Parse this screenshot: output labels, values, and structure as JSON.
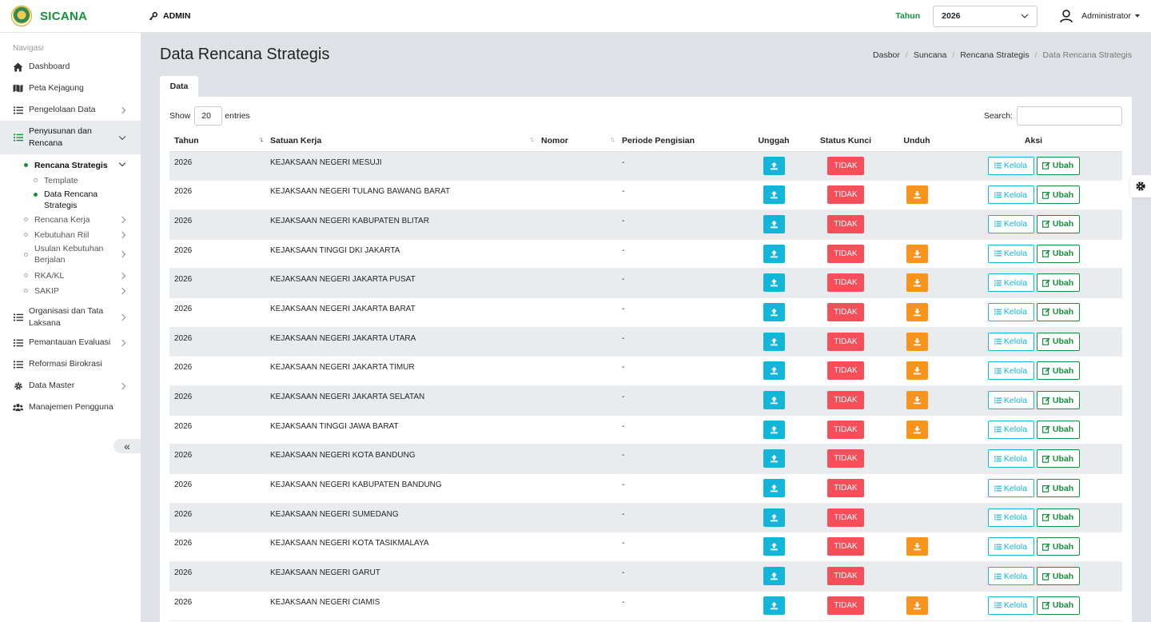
{
  "app": {
    "name": "SICANA",
    "role": "ADMIN"
  },
  "header": {
    "year_label": "Tahun",
    "year_value": "2026",
    "user": "Administrator"
  },
  "sidebar": {
    "title": "Navigasi",
    "items": [
      {
        "label": "Dashboard"
      },
      {
        "label": "Peta Kejagung"
      },
      {
        "label": "Pengelolaan Data"
      },
      {
        "label": "Penyusunan dan Rencana"
      },
      {
        "label": "Organisasi dan Tata Laksana"
      },
      {
        "label": "Pemantauan Evaluasi"
      },
      {
        "label": "Reformasi Birokrasi"
      },
      {
        "label": "Data Master"
      },
      {
        "label": "Manajemen Pengguna"
      }
    ],
    "sub": {
      "rencana_strategis": "Rencana Strategis",
      "template": "Template",
      "data_rencana": "Data Rencana Strategis",
      "rencana_kerja": "Rencana Kerja",
      "kebutuhan_riil": "Kebutuhan Riil",
      "usulan": "Usulan Kebutuhan Berjalan",
      "rka": "RKA/KL",
      "sakip": "SAKIP"
    },
    "collapse": "«"
  },
  "page": {
    "title": "Data Rencana Strategis",
    "breadcrumb": [
      "Dasbor",
      "Suncana",
      "Rencana Strategis",
      "Data Rencana Strategis"
    ],
    "tab": "Data"
  },
  "table_controls": {
    "show_label": "Show",
    "entries_value": "20",
    "entries_label": "entries",
    "search_label": "Search:"
  },
  "table": {
    "headers": [
      "Tahun",
      "Satuan Kerja",
      "Nomor",
      "Periode Pengisian",
      "Unggah",
      "Status Kunci",
      "Unduh",
      "Aksi"
    ],
    "status_text": "TIDAK",
    "kelola_label": "Kelola",
    "ubah_label": "Ubah",
    "rows": [
      {
        "tahun": "2026",
        "satker": "KEJAKSAAN NEGERI MESUJI",
        "nomor": "",
        "periode": "-",
        "unduh": false
      },
      {
        "tahun": "2026",
        "satker": "KEJAKSAAN NEGERI TULANG BAWANG BARAT",
        "nomor": "",
        "periode": "-",
        "unduh": true
      },
      {
        "tahun": "2026",
        "satker": "KEJAKSAAN NEGERI KABUPATEN BLITAR",
        "nomor": "",
        "periode": "-",
        "unduh": false
      },
      {
        "tahun": "2026",
        "satker": "KEJAKSAAN TINGGI DKI JAKARTA",
        "nomor": "",
        "periode": "-",
        "unduh": true
      },
      {
        "tahun": "2026",
        "satker": "KEJAKSAAN NEGERI JAKARTA PUSAT",
        "nomor": "",
        "periode": "-",
        "unduh": true
      },
      {
        "tahun": "2026",
        "satker": "KEJAKSAAN NEGERI JAKARTA BARAT",
        "nomor": "",
        "periode": "-",
        "unduh": true
      },
      {
        "tahun": "2026",
        "satker": "KEJAKSAAN NEGERI JAKARTA UTARA",
        "nomor": "",
        "periode": "-",
        "unduh": true
      },
      {
        "tahun": "2026",
        "satker": "KEJAKSAAN NEGERI JAKARTA TIMUR",
        "nomor": "",
        "periode": "-",
        "unduh": true
      },
      {
        "tahun": "2026",
        "satker": "KEJAKSAAN NEGERI JAKARTA SELATAN",
        "nomor": "",
        "periode": "-",
        "unduh": true
      },
      {
        "tahun": "2026",
        "satker": "KEJAKSAAN TINGGI JAWA BARAT",
        "nomor": "",
        "periode": "-",
        "unduh": true
      },
      {
        "tahun": "2026",
        "satker": "KEJAKSAAN NEGERI KOTA BANDUNG",
        "nomor": "",
        "periode": "-",
        "unduh": false
      },
      {
        "tahun": "2026",
        "satker": "KEJAKSAAN NEGERI KABUPATEN BANDUNG",
        "nomor": "",
        "periode": "-",
        "unduh": false
      },
      {
        "tahun": "2026",
        "satker": "KEJAKSAAN NEGERI SUMEDANG",
        "nomor": "",
        "periode": "-",
        "unduh": false
      },
      {
        "tahun": "2026",
        "satker": "KEJAKSAAN NEGERI KOTA TASIKMALAYA",
        "nomor": "",
        "periode": "-",
        "unduh": true
      },
      {
        "tahun": "2026",
        "satker": "KEJAKSAAN NEGERI GARUT",
        "nomor": "",
        "periode": "-",
        "unduh": false
      },
      {
        "tahun": "2026",
        "satker": "KEJAKSAAN NEGERI CIAMIS",
        "nomor": "",
        "periode": "-",
        "unduh": true
      }
    ]
  },
  "colors": {
    "brand": "#13923b",
    "upload": "#13b5d8",
    "download": "#f7941d",
    "status": "#f64f59"
  }
}
